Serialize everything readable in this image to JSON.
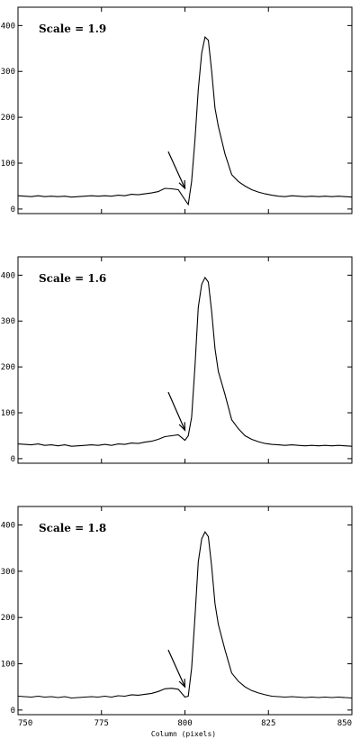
{
  "chart_data": [
    {
      "type": "line",
      "annotation": "Scale = 1.9",
      "xlim": [
        750,
        850
      ],
      "ylim": [
        -10,
        440
      ],
      "x_ticks": [
        750,
        775,
        800,
        825,
        850
      ],
      "y_ticks": [
        0,
        100,
        200,
        300,
        400
      ],
      "arrow": {
        "from": [
          795,
          125
        ],
        "to": [
          800,
          45
        ]
      },
      "series": [
        {
          "x": [
            750,
            752,
            754,
            756,
            758,
            760,
            762,
            764,
            766,
            768,
            770,
            772,
            774,
            776,
            778,
            780,
            782,
            784,
            786,
            788,
            790,
            792,
            794,
            796,
            798,
            800,
            801,
            802,
            803,
            804,
            805,
            806,
            807,
            808,
            809,
            810,
            812,
            814,
            816,
            818,
            820,
            822,
            824,
            826,
            828,
            830,
            832,
            834,
            836,
            838,
            840,
            842,
            844,
            846,
            848,
            850
          ],
          "y": [
            29,
            28,
            27,
            29,
            27,
            28,
            27,
            28,
            26,
            27,
            28,
            29,
            28,
            29,
            28,
            30,
            29,
            32,
            31,
            33,
            35,
            38,
            45,
            44,
            42,
            20,
            10,
            60,
            150,
            260,
            340,
            375,
            368,
            300,
            220,
            180,
            120,
            75,
            60,
            50,
            42,
            37,
            33,
            30,
            28,
            27,
            29,
            28,
            27,
            28,
            27,
            28,
            27,
            28,
            27,
            26
          ]
        }
      ]
    },
    {
      "type": "line",
      "annotation": "Scale = 1.6",
      "xlim": [
        750,
        850
      ],
      "ylim": [
        -10,
        440
      ],
      "x_ticks": [
        750,
        775,
        800,
        825,
        850
      ],
      "y_ticks": [
        0,
        100,
        200,
        300,
        400
      ],
      "arrow": {
        "from": [
          795,
          145
        ],
        "to": [
          800,
          62
        ]
      },
      "series": [
        {
          "x": [
            750,
            752,
            754,
            756,
            758,
            760,
            762,
            764,
            766,
            768,
            770,
            772,
            774,
            776,
            778,
            780,
            782,
            784,
            786,
            788,
            790,
            792,
            794,
            796,
            798,
            800,
            801,
            802,
            803,
            804,
            805,
            806,
            807,
            808,
            809,
            810,
            812,
            814,
            816,
            818,
            820,
            822,
            824,
            826,
            828,
            830,
            832,
            834,
            836,
            838,
            840,
            842,
            844,
            846,
            848,
            850
          ],
          "y": [
            32,
            31,
            30,
            32,
            29,
            30,
            28,
            30,
            27,
            28,
            29,
            30,
            29,
            31,
            29,
            32,
            31,
            34,
            33,
            36,
            38,
            42,
            48,
            50,
            52,
            40,
            50,
            90,
            200,
            330,
            380,
            395,
            385,
            320,
            240,
            190,
            140,
            85,
            65,
            50,
            42,
            37,
            33,
            31,
            30,
            29,
            30,
            29,
            28,
            29,
            28,
            29,
            28,
            29,
            28,
            27
          ]
        }
      ]
    },
    {
      "type": "line",
      "annotation": "Scale = 1.8",
      "xlim": [
        750,
        850
      ],
      "ylim": [
        -10,
        440
      ],
      "x_ticks": [
        750,
        775,
        800,
        825,
        850
      ],
      "y_ticks": [
        0,
        100,
        200,
        300,
        400
      ],
      "arrow": {
        "from": [
          795,
          130
        ],
        "to": [
          800,
          50
        ]
      },
      "series": [
        {
          "x": [
            750,
            752,
            754,
            756,
            758,
            760,
            762,
            764,
            766,
            768,
            770,
            772,
            774,
            776,
            778,
            780,
            782,
            784,
            786,
            788,
            790,
            792,
            794,
            796,
            798,
            800,
            801,
            802,
            803,
            804,
            805,
            806,
            807,
            808,
            809,
            810,
            812,
            814,
            816,
            818,
            820,
            822,
            824,
            826,
            828,
            830,
            832,
            834,
            836,
            838,
            840,
            842,
            844,
            846,
            848,
            850
          ],
          "y": [
            30,
            29,
            28,
            30,
            28,
            29,
            27,
            29,
            26,
            27,
            28,
            29,
            28,
            30,
            28,
            31,
            30,
            33,
            32,
            34,
            36,
            40,
            46,
            47,
            45,
            28,
            30,
            90,
            200,
            320,
            370,
            385,
            375,
            310,
            230,
            185,
            130,
            80,
            62,
            50,
            42,
            37,
            33,
            30,
            29,
            28,
            29,
            28,
            27,
            28,
            27,
            28,
            27,
            28,
            27,
            26
          ]
        }
      ]
    }
  ],
  "x_axis_title": "Column (pixels)"
}
